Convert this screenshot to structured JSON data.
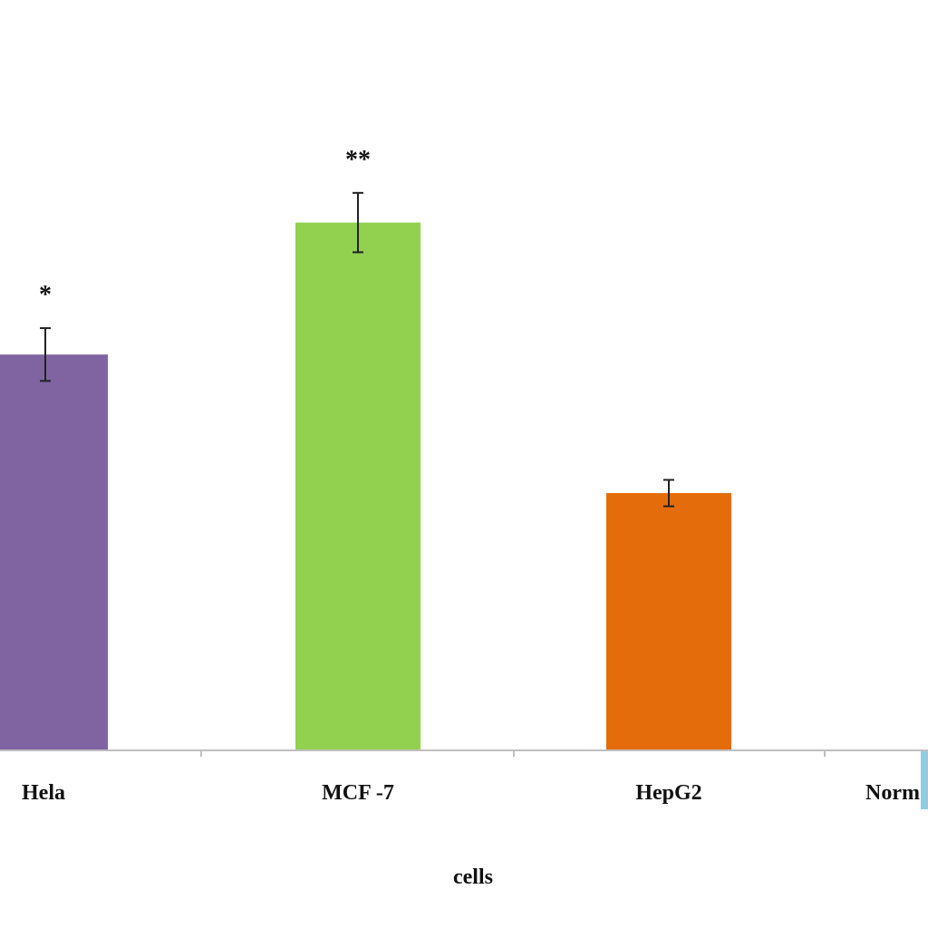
{
  "chart_data": {
    "type": "bar",
    "categories": [
      "Hela",
      "MCF -7",
      "HepG2",
      "Norm"
    ],
    "values": [
      60,
      80,
      39,
      0
    ],
    "errors": [
      4,
      4.5,
      2,
      0
    ],
    "significance": [
      "*",
      "**",
      "",
      ""
    ],
    "colors": [
      "#8064a2",
      "#92d050",
      "#e46c0a",
      "#93cddd"
    ],
    "xlabel": "cells",
    "ylim": [
      0,
      100
    ],
    "grid": false
  }
}
